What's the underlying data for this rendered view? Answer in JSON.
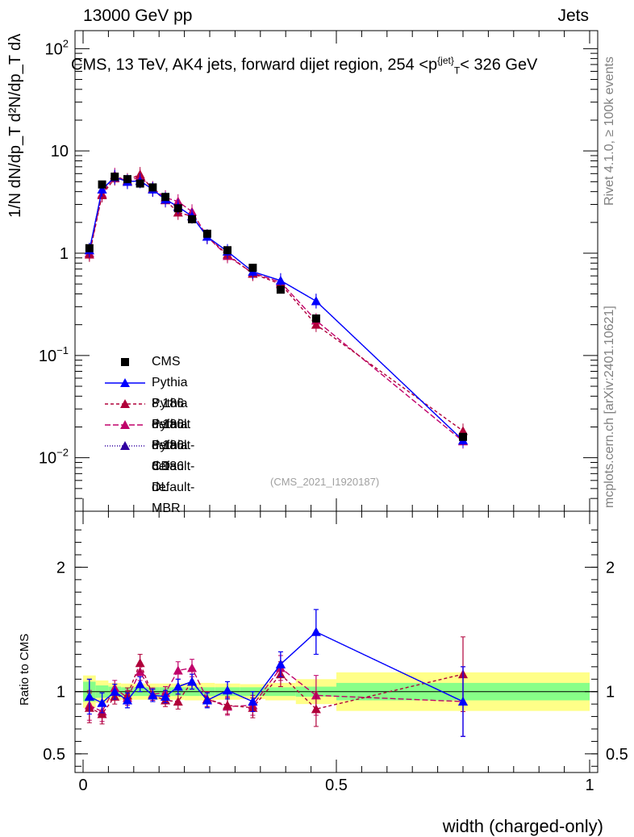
{
  "header": {
    "left": "13000 GeV pp",
    "right": "Jets"
  },
  "title": {
    "prefix": "CMS, 13 TeV, AK4 jets, forward dijet region, 254 <p",
    "sup": "{jet}",
    "sub": "T",
    "suffix": "< 326 GeV"
  },
  "watermark": "(CMS_2021_I1920187)",
  "side": {
    "rivet": "Rivet 4.1.0, ≥ 100k events",
    "mcplots": "mcplots.cern.ch [arXiv:2401.10621]"
  },
  "axes": {
    "xlabel": "width (charged-only)",
    "ylabel_main": "1/N dN/dp_T d²N/dp_T dλ",
    "ylabel_ratio": "Ratio to CMS"
  },
  "legend": [
    {
      "label": "CMS",
      "color": "#000000",
      "marker": "square",
      "dash": ""
    },
    {
      "label": "Pythia 8.186 default",
      "color": "#0000ff",
      "marker": "triangle",
      "dash": ""
    },
    {
      "label": "Pythia 8.186 default-CD",
      "color": "#b0003a",
      "marker": "triangle",
      "dash": "4,3"
    },
    {
      "label": "Pythia 8.186 default-DL",
      "color": "#c0006a",
      "marker": "triangle",
      "dash": "7,3"
    },
    {
      "label": "Pythia 8.186 default-MBR",
      "color": "#3000a0",
      "marker": "triangle",
      "dash": "1,2"
    }
  ],
  "chart_data": [
    {
      "type": "scatter",
      "panel": "main",
      "yscale": "log",
      "xlim": [
        0,
        1
      ],
      "ylim": [
        0.003,
        150
      ],
      "yticks": [
        {
          "v": 0.01,
          "label": "10",
          "sup": "−2"
        },
        {
          "v": 0.1,
          "label": "10",
          "sup": "−1"
        },
        {
          "v": 1,
          "label": "1",
          "sup": ""
        },
        {
          "v": 10,
          "label": "10",
          "sup": ""
        },
        {
          "v": 100,
          "label": "10",
          "sup": "2"
        }
      ],
      "x": [
        0.0125,
        0.0375,
        0.0625,
        0.0875,
        0.1125,
        0.1375,
        0.1625,
        0.1875,
        0.215,
        0.245,
        0.285,
        0.335,
        0.39,
        0.46,
        0.75
      ],
      "series": [
        {
          "name": "CMS",
          "values": [
            1.12,
            4.7,
            5.6,
            5.3,
            4.8,
            4.4,
            3.55,
            2.75,
            2.15,
            1.55,
            1.07,
            0.72,
            0.44,
            0.23,
            0.016
          ]
        },
        {
          "name": "Pythia 8.186 default",
          "values": [
            1.07,
            4.2,
            5.55,
            5.0,
            5.1,
            4.2,
            3.35,
            2.85,
            2.3,
            1.45,
            1.04,
            0.66,
            0.54,
            0.34,
            0.0148
          ]
        },
        {
          "name": "Pythia 8.186 default-CD",
          "values": [
            0.97,
            3.7,
            5.4,
            5.15,
            5.9,
            4.2,
            3.3,
            2.5,
            2.3,
            1.45,
            0.97,
            0.63,
            0.5,
            0.2,
            0.0183
          ]
        },
        {
          "name": "Pythia 8.186 default-DL",
          "values": [
            1.0,
            3.8,
            5.8,
            5.0,
            5.6,
            4.3,
            3.5,
            3.2,
            2.55,
            1.45,
            0.94,
            0.64,
            0.52,
            0.22,
            0.0145
          ]
        },
        {
          "name": "Pythia 8.186 default-MBR",
          "values": [
            1.07,
            4.2,
            5.55,
            5.0,
            5.1,
            4.2,
            3.35,
            2.85,
            2.3,
            1.45,
            1.04,
            0.66,
            0.54,
            0.34,
            0.0148
          ]
        }
      ]
    },
    {
      "type": "scatter",
      "panel": "ratio",
      "xlim": [
        0,
        1
      ],
      "ylim": [
        0.35,
        2.45
      ],
      "yticks": [
        {
          "v": 0.5,
          "label": "0.5"
        },
        {
          "v": 1,
          "label": "1"
        },
        {
          "v": 2,
          "label": "2"
        }
      ],
      "xticks": [
        {
          "v": 0,
          "label": "0"
        },
        {
          "v": 0.5,
          "label": "0.5"
        },
        {
          "v": 1,
          "label": "1"
        }
      ],
      "x": [
        0.0125,
        0.0375,
        0.0625,
        0.0875,
        0.1125,
        0.1375,
        0.1625,
        0.1875,
        0.215,
        0.245,
        0.285,
        0.335,
        0.39,
        0.46,
        0.75
      ],
      "series": [
        {
          "name": "Pythia 8.186 default",
          "values": [
            0.96,
            0.91,
            1.0,
            0.93,
            1.06,
            0.97,
            0.96,
            1.04,
            1.08,
            0.93,
            1.01,
            0.92,
            1.22,
            1.48,
            0.92
          ],
          "errors": [
            0.14,
            0.08,
            0.06,
            0.06,
            0.06,
            0.05,
            0.05,
            0.06,
            0.06,
            0.06,
            0.07,
            0.08,
            0.1,
            0.18,
            0.28
          ]
        },
        {
          "name": "Pythia 8.186 default-CD",
          "values": [
            0.87,
            0.82,
            0.96,
            0.97,
            1.23,
            0.97,
            0.93,
            0.92,
            1.08,
            0.94,
            0.89,
            0.87,
            1.14,
            0.86,
            1.14
          ],
          "errors": [
            0.12,
            0.08,
            0.06,
            0.06,
            0.07,
            0.05,
            0.05,
            0.06,
            0.06,
            0.06,
            0.07,
            0.08,
            0.1,
            0.14,
            0.3
          ]
        },
        {
          "name": "Pythia 8.186 default-DL",
          "values": [
            0.89,
            0.84,
            1.03,
            0.95,
            1.16,
            0.98,
            0.99,
            1.17,
            1.19,
            0.94,
            0.88,
            0.89,
            1.19,
            0.97,
            0.92
          ],
          "errors": [
            0.12,
            0.08,
            0.06,
            0.06,
            0.07,
            0.05,
            0.05,
            0.07,
            0.07,
            0.06,
            0.07,
            0.08,
            0.1,
            0.16,
            0.28
          ]
        },
        {
          "name": "Pythia 8.186 default-MBR",
          "values": [
            0.96,
            0.91,
            1.0,
            0.93,
            1.06,
            0.97,
            0.96,
            1.04,
            1.08,
            0.93,
            1.01,
            0.92,
            1.22,
            1.48,
            0.92
          ],
          "errors": [
            0.14,
            0.08,
            0.06,
            0.06,
            0.06,
            0.05,
            0.05,
            0.06,
            0.06,
            0.06,
            0.07,
            0.08,
            0.1,
            0.18,
            0.28
          ]
        }
      ],
      "bands": {
        "edges": [
          0,
          0.025,
          0.05,
          0.075,
          0.1,
          0.125,
          0.15,
          0.175,
          0.2,
          0.23,
          0.26,
          0.31,
          0.36,
          0.42,
          0.5,
          1.0
        ],
        "stat": [
          0.08,
          0.05,
          0.04,
          0.035,
          0.035,
          0.035,
          0.035,
          0.035,
          0.035,
          0.035,
          0.035,
          0.035,
          0.035,
          0.04,
          0.07
        ],
        "total": [
          0.13,
          0.09,
          0.07,
          0.065,
          0.065,
          0.065,
          0.065,
          0.065,
          0.07,
          0.07,
          0.065,
          0.06,
          0.07,
          0.1,
          0.155
        ]
      }
    }
  ]
}
